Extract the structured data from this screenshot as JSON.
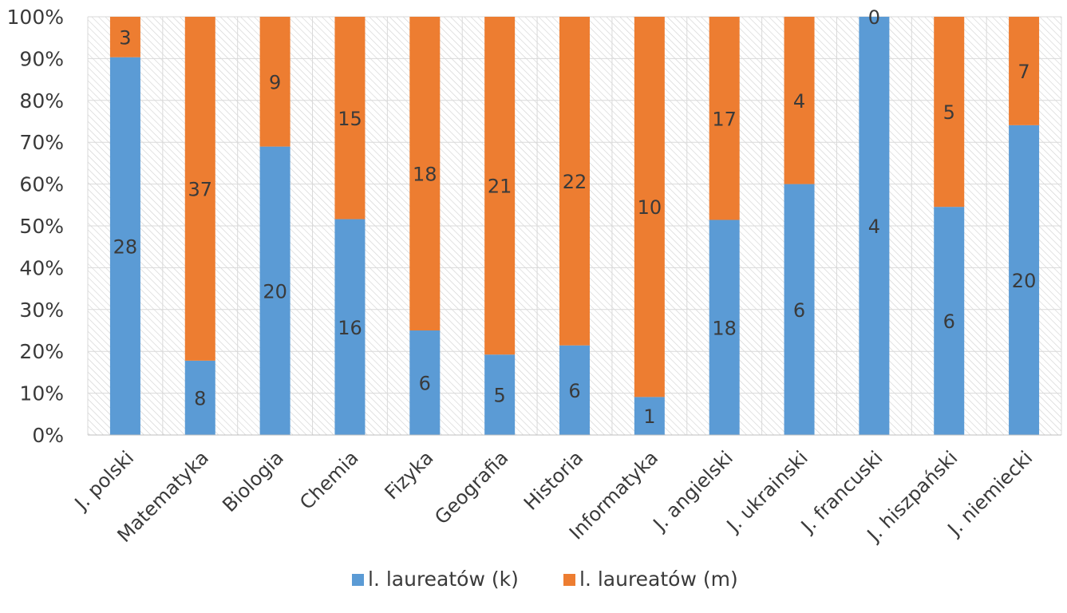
{
  "chart_data": {
    "type": "bar",
    "stacked": "percent",
    "title": "",
    "xlabel": "",
    "ylabel": "",
    "ylim": [
      0,
      100
    ],
    "y_ticks": [
      "0%",
      "10%",
      "20%",
      "30%",
      "40%",
      "50%",
      "60%",
      "70%",
      "80%",
      "90%",
      "100%"
    ],
    "grid": true,
    "legend_position": "bottom",
    "categories": [
      "J. polski",
      "Matematyka",
      "Biologia",
      "Chemia",
      "Fizyka",
      "Geografia",
      "Historia",
      "Informatyka",
      "J. angielski",
      "J. ukrainski",
      "J. francuski",
      "J. hiszpański",
      "J. niemiecki"
    ],
    "series": [
      {
        "name": "l. laureatów (k)",
        "color": "#5b9bd5",
        "values": [
          28,
          8,
          20,
          16,
          6,
          5,
          6,
          1,
          18,
          6,
          4,
          6,
          20
        ]
      },
      {
        "name": "l. laureatów (m)",
        "color": "#ed7d31",
        "values": [
          3,
          37,
          9,
          15,
          18,
          21,
          22,
          10,
          17,
          4,
          0,
          5,
          7
        ]
      }
    ]
  }
}
